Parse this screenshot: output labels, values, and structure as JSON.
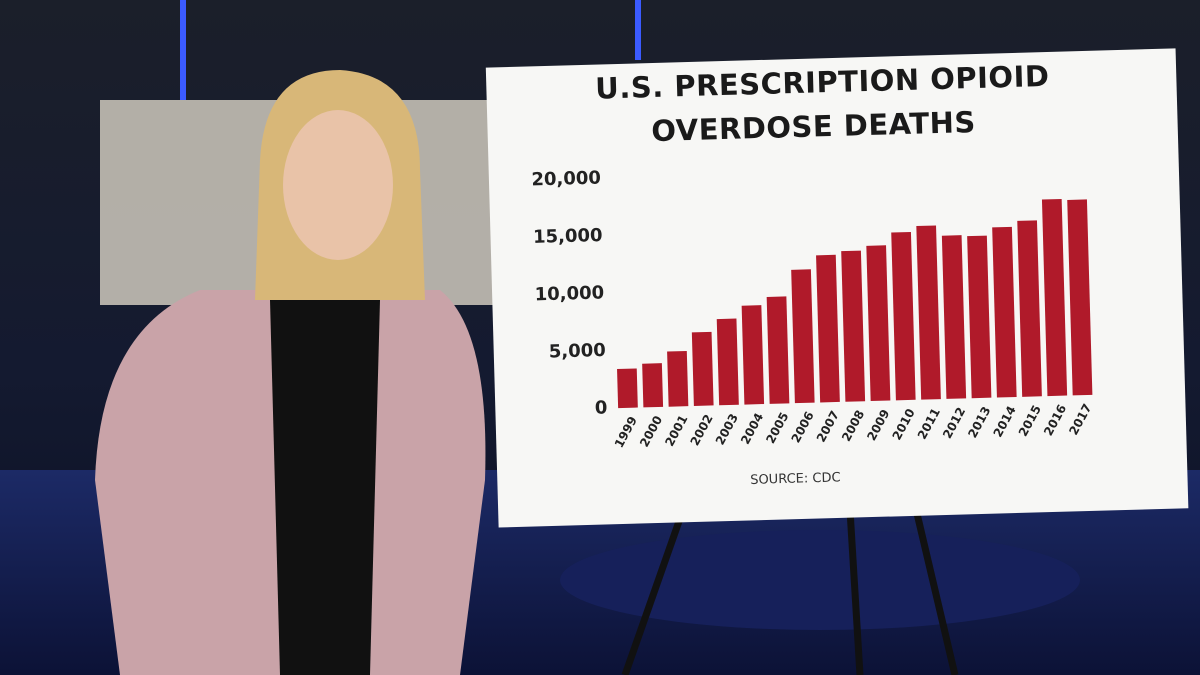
{
  "chart_data": {
    "type": "bar",
    "title": [
      "U.S. PRESCRIPTION OPIOID",
      "OVERDOSE DEATHS"
    ],
    "source": "SOURCE: CDC",
    "categories": [
      "1999",
      "2000",
      "2001",
      "2002",
      "2003",
      "2004",
      "2005",
      "2006",
      "2007",
      "2008",
      "2009",
      "2010",
      "2011",
      "2012",
      "2013",
      "2014",
      "2015",
      "2016",
      "2017"
    ],
    "values": [
      3400,
      3800,
      4800,
      6400,
      7500,
      8600,
      9300,
      11600,
      12800,
      13100,
      13500,
      14600,
      15100,
      14200,
      14100,
      14800,
      15300,
      17100,
      17000
    ],
    "color": "#b01a2a",
    "ylim": [
      0,
      20000
    ],
    "yticks": [
      0,
      {
        "value": 5000,
        "label": "5,000"
      },
      {
        "value": 10000,
        "label": "10,000"
      },
      {
        "value": 15000,
        "label": "15,000"
      },
      {
        "value": 20000,
        "label": "20,000"
      }
    ],
    "grid": false
  }
}
